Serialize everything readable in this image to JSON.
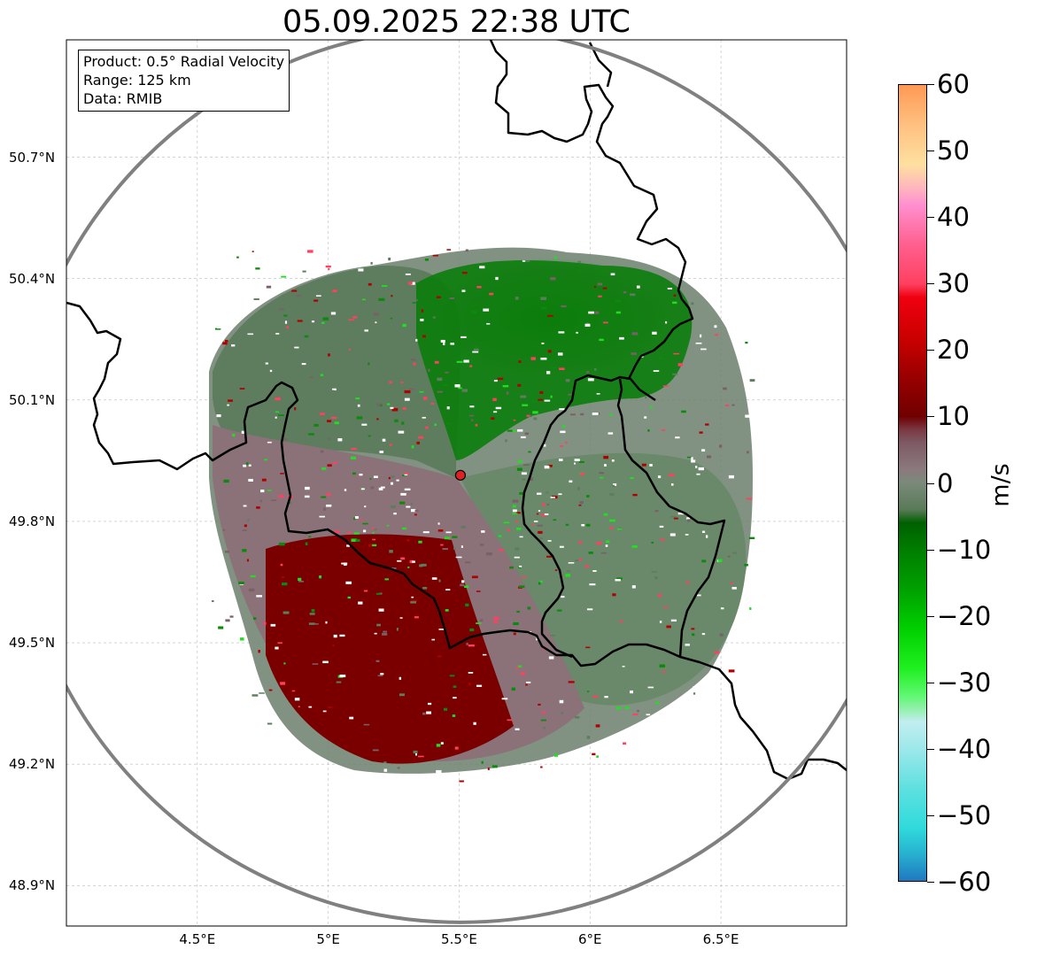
{
  "title": "05.09.2025 22:38 UTC",
  "info": {
    "product": "Product: 0.5° Radial Velocity",
    "range": "Range: 125 km",
    "data": "Data: RMIB"
  },
  "map": {
    "lon_range": [
      4.0,
      6.98
    ],
    "lat_range": [
      48.8,
      50.99
    ],
    "radar_site": {
      "lon": 5.505,
      "lat": 49.914
    },
    "range_ring_color": "#808080",
    "border_color": "#000000",
    "grid_color": "#bbbbbb",
    "lat_ticks": [
      {
        "value": 50.7,
        "label": "50.7°N"
      },
      {
        "value": 50.4,
        "label": "50.4°N"
      },
      {
        "value": 50.1,
        "label": "50.1°N"
      },
      {
        "value": 49.8,
        "label": "49.8°N"
      },
      {
        "value": 49.5,
        "label": "49.5°N"
      },
      {
        "value": 49.2,
        "label": "49.2°N"
      },
      {
        "value": 48.9,
        "label": "48.9°N"
      }
    ],
    "lon_ticks": [
      {
        "value": 4.5,
        "label": "4.5°E"
      },
      {
        "value": 5.0,
        "label": "5°E"
      },
      {
        "value": 5.5,
        "label": "5.5°E"
      },
      {
        "value": 6.0,
        "label": "6°E"
      },
      {
        "value": 6.5,
        "label": "6.5°E"
      }
    ]
  },
  "colorbar": {
    "unit": "m/s",
    "min": -60,
    "max": 60,
    "ticks": [
      {
        "value": 60,
        "label": "60"
      },
      {
        "value": 50,
        "label": "50"
      },
      {
        "value": 40,
        "label": "40"
      },
      {
        "value": 30,
        "label": "30"
      },
      {
        "value": 20,
        "label": "20"
      },
      {
        "value": 10,
        "label": "10"
      },
      {
        "value": 0,
        "label": "0"
      },
      {
        "value": -10,
        "label": "−10"
      },
      {
        "value": -20,
        "label": "−20"
      },
      {
        "value": -30,
        "label": "−30"
      },
      {
        "value": -40,
        "label": "−40"
      },
      {
        "value": -50,
        "label": "−50"
      },
      {
        "value": -60,
        "label": "−60"
      }
    ],
    "stops": [
      {
        "value": -60,
        "color": "#1f78c1"
      },
      {
        "value": -56,
        "color": "#27b0d0"
      },
      {
        "value": -52,
        "color": "#30dadc"
      },
      {
        "value": -46,
        "color": "#5fe0e0"
      },
      {
        "value": -40,
        "color": "#9ee8ea"
      },
      {
        "value": -36,
        "color": "#c2eef0"
      },
      {
        "value": -34,
        "color": "#90f0a8"
      },
      {
        "value": -32,
        "color": "#5ef870"
      },
      {
        "value": -28,
        "color": "#20f020"
      },
      {
        "value": -22,
        "color": "#00d000"
      },
      {
        "value": -16,
        "color": "#00a000"
      },
      {
        "value": -10,
        "color": "#007d00"
      },
      {
        "value": -6,
        "color": "#006000"
      },
      {
        "value": -4,
        "color": "#5a7a58"
      },
      {
        "value": 0,
        "color": "#7a8a7a"
      },
      {
        "value": 2,
        "color": "#8a7a7e"
      },
      {
        "value": 6,
        "color": "#7e5a64"
      },
      {
        "value": 8,
        "color": "#7a3a44"
      },
      {
        "value": 10,
        "color": "#700000"
      },
      {
        "value": 16,
        "color": "#9a0000"
      },
      {
        "value": 22,
        "color": "#cc0000"
      },
      {
        "value": 28,
        "color": "#f00010"
      },
      {
        "value": 30,
        "color": "#ff4060"
      },
      {
        "value": 36,
        "color": "#ff6090"
      },
      {
        "value": 42,
        "color": "#ff90d0"
      },
      {
        "value": 44,
        "color": "#ffb0c0"
      },
      {
        "value": 48,
        "color": "#ffe0a0"
      },
      {
        "value": 54,
        "color": "#ffc080"
      },
      {
        "value": 60,
        "color": "#ff9955"
      }
    ]
  }
}
